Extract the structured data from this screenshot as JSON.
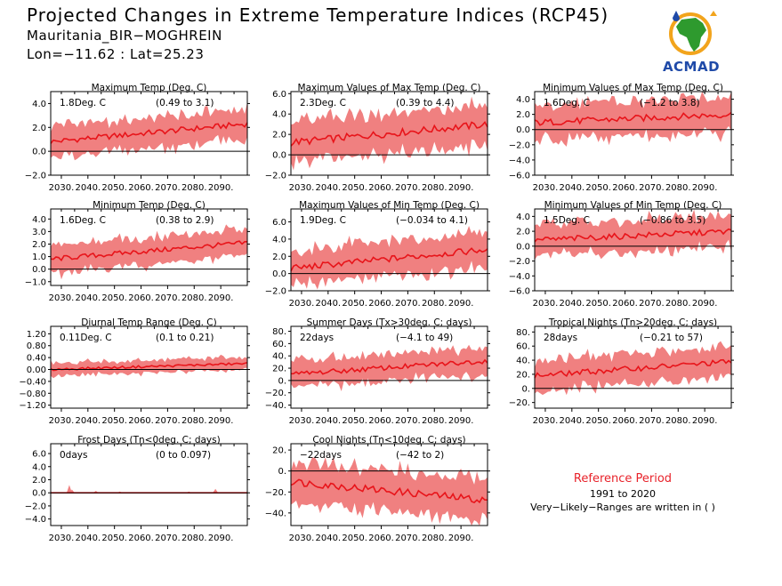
{
  "header": {
    "title": "Projected Changes in Extreme Temperature Indices (RCP45)",
    "station": "Mauritania_BIR−MOGHREIN",
    "coords": "Lon=−11.62 : Lat=25.23"
  },
  "logo": {
    "text": "ACMAD"
  },
  "reference": {
    "title": "Reference Period",
    "years": "1991 to 2020",
    "note": "Very−Likely−Ranges are written in ( )"
  },
  "colors": {
    "band": "#f08080",
    "line": "#e8141a",
    "zero": "#000000"
  },
  "chart_data": [
    {
      "type": "area",
      "title": "Maximum Temp (Deg. C)",
      "summary": "1.8Deg. C",
      "range": "(0.49 to 3.1)",
      "x_ticks": [
        "2030.",
        "2040.",
        "2050.",
        "2060.",
        "2070.",
        "2080.",
        "2090."
      ],
      "y_ticks": [
        "−2.0",
        "0.0",
        "2.0",
        "4.0"
      ],
      "ylim": [
        -2.0,
        5.0
      ],
      "y_tick_values": [
        -2,
        0,
        2,
        4
      ],
      "mean_start": 0.8,
      "mean_end": 2.3,
      "band_halfwidth": 1.3
    },
    {
      "type": "area",
      "title": "Maximum Values of Max Temp (Deg. C)",
      "summary": "2.3Deg. C",
      "range": "(0.39 to 4.4)",
      "x_ticks": [
        "2030.",
        "2040.",
        "2050.",
        "2060.",
        "2070.",
        "2080.",
        "2090."
      ],
      "y_ticks": [
        "−2.0",
        "0.0",
        "2.0",
        "4.0",
        "6.0"
      ],
      "ylim": [
        -2.0,
        6.2
      ],
      "y_tick_values": [
        -2,
        0,
        2,
        4,
        6
      ],
      "mean_start": 1.2,
      "mean_end": 3.0,
      "band_halfwidth": 2.0
    },
    {
      "type": "area",
      "title": "Minimum Values of Max Temp (Deg. C)",
      "summary": "1.6Deg. C",
      "range": "(−1.2 to 3.8)",
      "x_ticks": [
        "2030.",
        "2040.",
        "2050.",
        "2060.",
        "2070.",
        "2080.",
        "2090."
      ],
      "y_ticks": [
        "−6.0",
        "−4.0",
        "−2.0",
        "0.0",
        "2.0",
        "4.0"
      ],
      "ylim": [
        -6.0,
        5.0
      ],
      "y_tick_values": [
        -6,
        -4,
        -2,
        0,
        2,
        4
      ],
      "mean_start": 0.9,
      "mean_end": 2.0,
      "band_halfwidth": 2.4
    },
    {
      "type": "area",
      "title": "Minimum Temp (Deg. C)",
      "summary": "1.6Deg. C",
      "range": "(0.38 to 2.9)",
      "x_ticks": [
        "2030.",
        "2040.",
        "2050.",
        "2060.",
        "2070.",
        "2080.",
        "2090."
      ],
      "y_ticks": [
        "−1.0",
        "0.0",
        "1.0",
        "2.0",
        "3.0",
        "4.0"
      ],
      "ylim": [
        -1.3,
        4.8
      ],
      "y_tick_values": [
        -1,
        0,
        1,
        2,
        3,
        4
      ],
      "mean_start": 0.8,
      "mean_end": 2.1,
      "band_halfwidth": 1.1
    },
    {
      "type": "area",
      "title": "Maximum Values of Min Temp (Deg. C)",
      "summary": "1.9Deg. C",
      "range": "(−0.034 to 4.1)",
      "x_ticks": [
        "2030.",
        "2040.",
        "2050.",
        "2060.",
        "2070.",
        "2080.",
        "2090."
      ],
      "y_ticks": [
        "−2.0",
        "0.0",
        "2.0",
        "4.0",
        "6.0"
      ],
      "ylim": [
        -2.0,
        7.5
      ],
      "y_tick_values": [
        -2,
        0,
        2,
        4,
        6
      ],
      "mean_start": 0.6,
      "mean_end": 2.8,
      "band_halfwidth": 2.1
    },
    {
      "type": "area",
      "title": "Minimum Values of Min Temp (Deg. C)",
      "summary": "1.5Deg. C",
      "range": "(−0.86 to 3.5)",
      "x_ticks": [
        "2030.",
        "2040.",
        "2050.",
        "2060.",
        "2070.",
        "2080.",
        "2090."
      ],
      "y_ticks": [
        "−6.0",
        "−4.0",
        "−2.0",
        "0.0",
        "2.0",
        "4.0"
      ],
      "ylim": [
        -6.0,
        5.0
      ],
      "y_tick_values": [
        -6,
        -4,
        -2,
        0,
        2,
        4
      ],
      "mean_start": 0.8,
      "mean_end": 2.0,
      "band_halfwidth": 2.2
    },
    {
      "type": "area",
      "title": "Diurnal Temp Range (Deg. C)",
      "summary": "0.11Deg. C",
      "range": "(0.1 to 0.21)",
      "x_ticks": [
        "2030.",
        "2040.",
        "2050.",
        "2060.",
        "2070.",
        "2080.",
        "2090."
      ],
      "y_ticks": [
        "−1.20",
        "−0.80",
        "−0.40",
        "0.00",
        "0.40",
        "0.80",
        "1.20"
      ],
      "ylim": [
        -1.3,
        1.45
      ],
      "y_tick_values": [
        -1.2,
        -0.8,
        -0.4,
        0,
        0.4,
        0.8,
        1.2
      ],
      "mean_start": 0.0,
      "mean_end": 0.2,
      "band_halfwidth": 0.22
    },
    {
      "type": "area",
      "title": "Summer Days (Tx>30deg. C; days)",
      "summary": "22days",
      "range": "(−4.1 to 49)",
      "x_ticks": [
        "2030.",
        "2040.",
        "2050.",
        "2060.",
        "2070.",
        "2080.",
        "2090."
      ],
      "y_ticks": [
        "−40.",
        "−20.",
        "0.",
        "20.",
        "40.",
        "60.",
        "80."
      ],
      "ylim": [
        -45,
        88
      ],
      "y_tick_values": [
        -40,
        -20,
        0,
        20,
        40,
        60,
        80
      ],
      "mean_start": 10,
      "mean_end": 32,
      "band_halfwidth": 22
    },
    {
      "type": "area",
      "title": "Tropical Nights (Tn>20deg. C; days)",
      "summary": "28days",
      "range": "(−0.21 to 57)",
      "x_ticks": [
        "2030.",
        "2040.",
        "2050.",
        "2060.",
        "2070.",
        "2080.",
        "2090."
      ],
      "y_ticks": [
        "−20.",
        "0.",
        "20.",
        "40.",
        "60.",
        "80."
      ],
      "ylim": [
        -28,
        88
      ],
      "y_tick_values": [
        -20,
        0,
        20,
        40,
        60,
        80
      ],
      "mean_start": 18,
      "mean_end": 38,
      "band_halfwidth": 22
    },
    {
      "type": "area",
      "title": "Frost Days (Tn<0deg. C; days)",
      "summary": "0days",
      "range": "(0 to 0.097)",
      "x_ticks": [
        "2030.",
        "2040.",
        "2050.",
        "2060.",
        "2070.",
        "2080.",
        "2090."
      ],
      "y_ticks": [
        "−4.0",
        "−2.0",
        "0.0",
        "2.0",
        "4.0",
        "6.0"
      ],
      "ylim": [
        -5.0,
        7.5
      ],
      "y_tick_values": [
        -4,
        -2,
        0,
        2,
        4,
        6
      ],
      "mean_start": 0.0,
      "mean_end": 0.0,
      "band_halfwidth": 0.0
    },
    {
      "type": "area",
      "title": "Cool Nights (Tn<10deg. C; days)",
      "summary": "−22days",
      "range": "(−42 to 2)",
      "x_ticks": [
        "2030.",
        "2040.",
        "2050.",
        "2060.",
        "2070.",
        "2080.",
        "2090."
      ],
      "y_ticks": [
        "−40.",
        "−20.",
        "0.",
        "20."
      ],
      "ylim": [
        -52,
        26
      ],
      "y_tick_values": [
        -40,
        -20,
        0,
        20
      ],
      "mean_start": -10,
      "mean_end": -28,
      "band_halfwidth": 20
    }
  ]
}
